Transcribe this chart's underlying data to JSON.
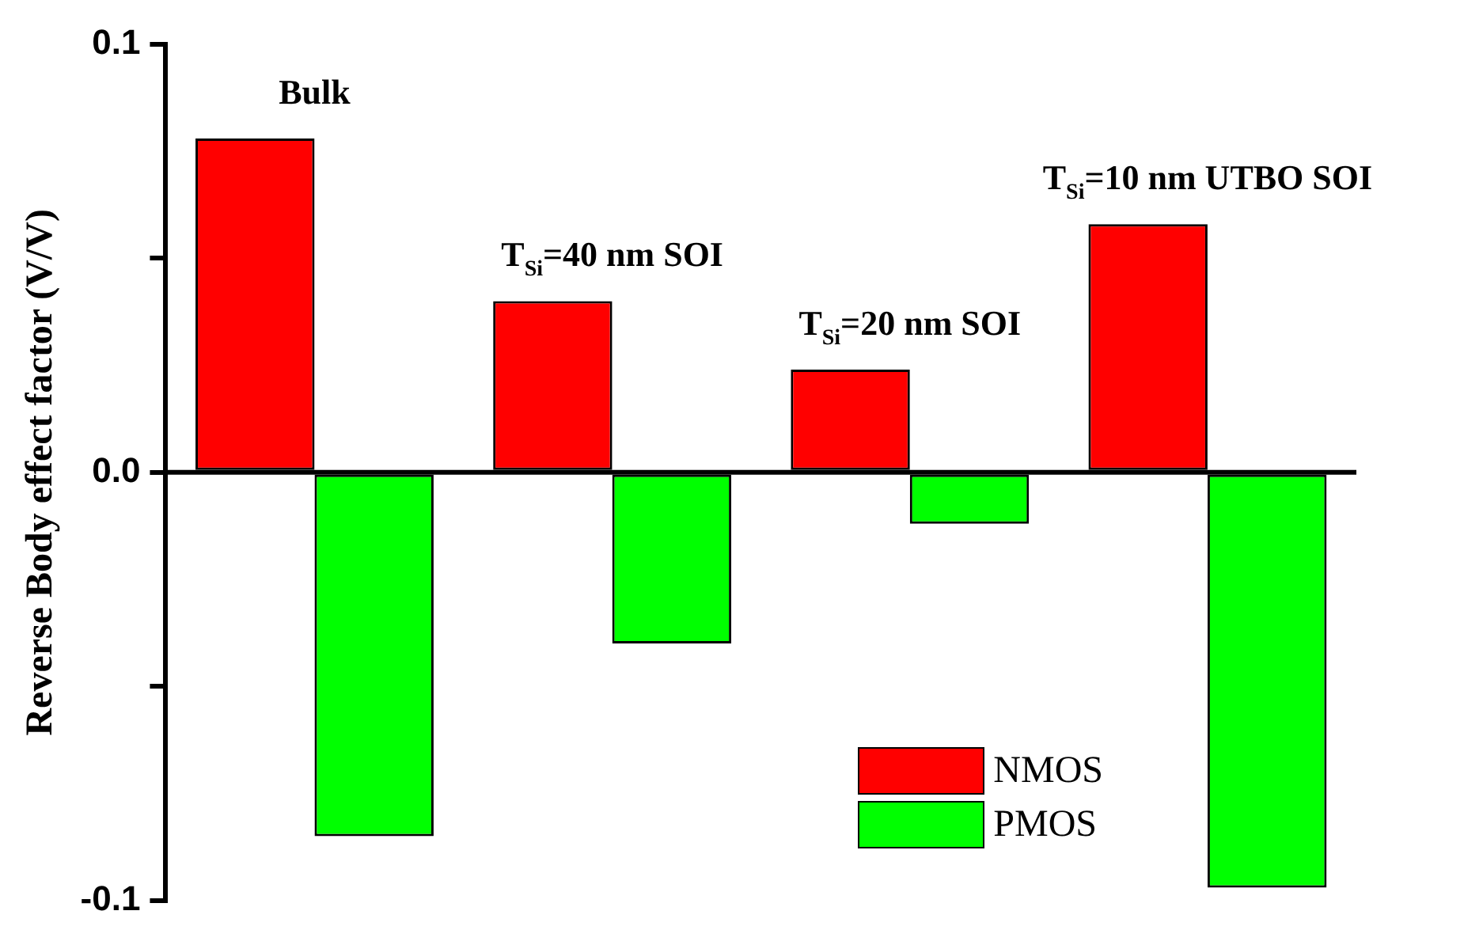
{
  "chart_data": {
    "type": "bar",
    "ylabel": "Reverse Body effect factor (V/V)",
    "categories": [
      null,
      null,
      null,
      null
    ],
    "series": [
      {
        "name": "NMOS",
        "color": "#ff0000",
        "values": [
          0.078,
          0.04,
          0.024,
          0.058
        ]
      },
      {
        "name": "PMOS",
        "color": "#00ff00",
        "values": [
          -0.085,
          -0.04,
          -0.012,
          -0.097
        ]
      }
    ],
    "annotations": [
      "Bulk",
      "T$_{Si}$=40 nm SOI",
      "T$_{Si}$=20 nm SOI",
      "T$_{Si}$=10 nm UTBO SOI"
    ],
    "ylim": [
      -0.1,
      0.1
    ],
    "yticks": [
      {
        "value": -0.1,
        "label": "-0.1"
      },
      {
        "value": -0.05,
        "label": null
      },
      {
        "value": 0,
        "label": "0.0"
      },
      {
        "value": 0.05,
        "label": null
      },
      {
        "value": 0.1,
        "label": "0.1"
      }
    ],
    "legend": "bottom right"
  }
}
